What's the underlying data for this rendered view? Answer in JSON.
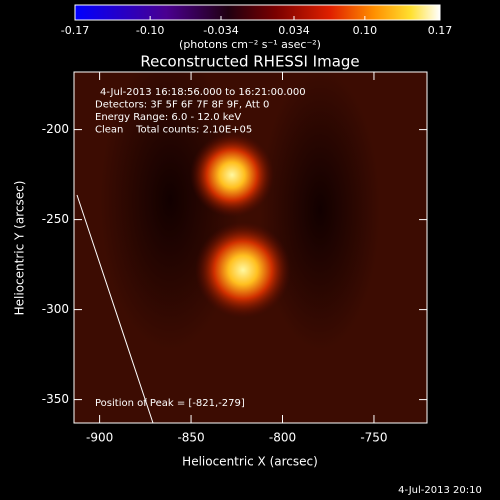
{
  "chart_data": {
    "type": "image",
    "title": "Reconstructed RHESSI Image",
    "xlabel": "Heliocentric X (arcsec)",
    "ylabel": "Heliocentric Y (arcsec)",
    "xlim": [
      -914,
      -721
    ],
    "xticks": [
      -900,
      -850,
      -800,
      -750
    ],
    "ylim": [
      -363,
      -168
    ],
    "yticks": [
      -350,
      -300,
      -250,
      -200
    ],
    "annotations": [
      "4-Jul-2013 16:18:56.000 to 16:21:00.000",
      "Detectors: 3F 5F 6F 7F 8F 9F, Att 0",
      "Energy Range: 6.0 - 12.0 keV",
      "Clean    Total counts: 2.10E+05"
    ],
    "peak_label": "Position of Peak = [-821,-279]",
    "timestamp": "4-Jul-2013 20:10",
    "colorbar": {
      "clim": [
        -0.17,
        0.17
      ],
      "ticks": [
        -0.17,
        {
          "value": -0.1,
          "label": "-0.10"
        },
        -0.034,
        0.034,
        {
          "value": 0.1,
          "label": "0.10"
        },
        0.17
      ],
      "label": "(photons cm⁻² s⁻¹ asec⁻²)"
    }
  }
}
